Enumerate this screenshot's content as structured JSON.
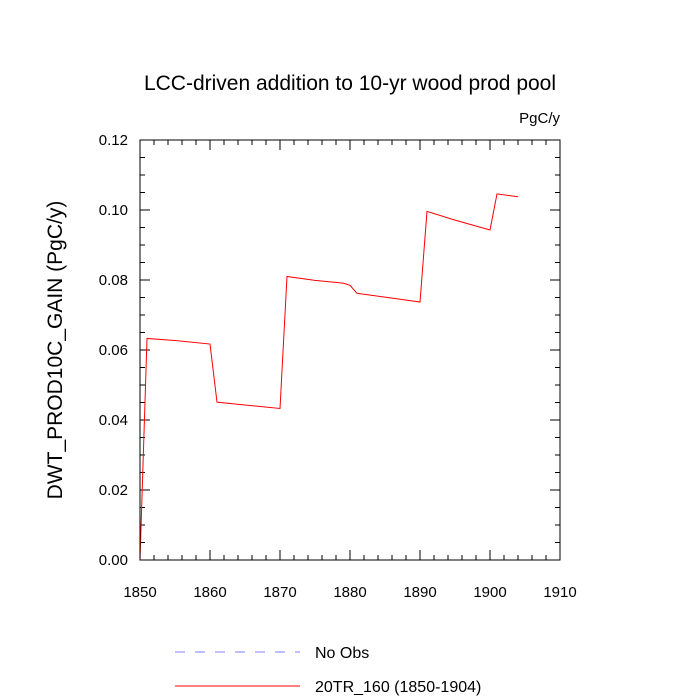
{
  "chart_data": {
    "type": "line",
    "title": "LCC-driven addition to 10-yr wood prod pool",
    "units": "PgC/y",
    "xlabel": "",
    "ylabel": "DWT_PROD10C_GAIN  (PgC/y)",
    "xlim": [
      1850,
      1910
    ],
    "ylim": [
      0,
      0.12
    ],
    "x_ticks": [
      1850,
      1860,
      1870,
      1880,
      1890,
      1900,
      1910
    ],
    "x_tick_labels": [
      "1850",
      "1860",
      "1870",
      "1880",
      "1890",
      "1900",
      "1910"
    ],
    "y_ticks": [
      0,
      0.02,
      0.04,
      0.06,
      0.08,
      0.1,
      0.12
    ],
    "y_tick_labels": [
      "0.00",
      "0.02",
      "0.04",
      "0.06",
      "0.08",
      "0.10",
      "0.12"
    ],
    "grid": false,
    "legend_position": "bottom",
    "series": [
      {
        "name": "No Obs",
        "color": "#8080ff",
        "style": "dashed",
        "x": [],
        "y": []
      },
      {
        "name": "20TR_160 (1850-1904)",
        "color": "#ff0000",
        "style": "solid",
        "x": [
          1850,
          1851,
          1855,
          1860,
          1861,
          1865,
          1870,
          1871,
          1875,
          1879,
          1880,
          1881,
          1885,
          1890,
          1891,
          1895,
          1900,
          1901,
          1904
        ],
        "y": [
          0.0,
          0.0633,
          0.0627,
          0.0617,
          0.0451,
          0.0443,
          0.0433,
          0.081,
          0.0799,
          0.0791,
          0.0785,
          0.0762,
          0.0751,
          0.0737,
          0.0996,
          0.0971,
          0.0943,
          0.1046,
          0.1038
        ]
      }
    ]
  }
}
